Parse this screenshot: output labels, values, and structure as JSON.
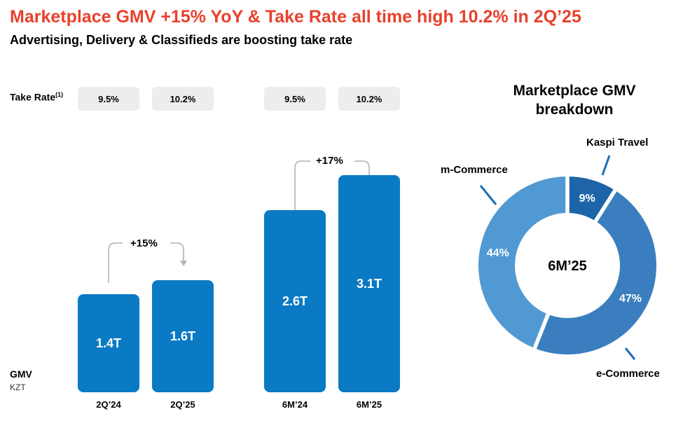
{
  "title": "Marketplace GMV +15% YoY & Take Rate all time high 10.2% in 2Q’25",
  "subtitle": "Advertising, Delivery & Classifieds are boosting take rate",
  "take_rate": {
    "label": "Take Rate",
    "footnote": "(1)",
    "values": [
      "9.5%",
      "10.2%",
      "9.5%",
      "10.2%"
    ]
  },
  "gmv_label": "GMV",
  "currency_label": "KZT",
  "growth": {
    "quarter": "+15%",
    "half_year": "+17%"
  },
  "chart_data": [
    {
      "type": "bar",
      "categories": [
        "2Q’24",
        "2Q’25",
        "6M’24",
        "6M’25"
      ],
      "values": [
        1.4,
        1.6,
        2.6,
        3.1
      ],
      "data_labels": [
        "1.4T",
        "1.6T",
        "2.6T",
        "3.1T"
      ],
      "ylim": [
        0,
        3.4
      ],
      "grid": false
    },
    {
      "type": "pie",
      "title": "Marketplace GMV breakdown",
      "center_label": "6M’25",
      "slices": [
        {
          "name": "Kaspi Travel",
          "value": 9,
          "label": "9%",
          "color": "#1e64a8"
        },
        {
          "name": "e-Commerce",
          "value": 47,
          "label": "47%",
          "color": "#3a7ebf"
        },
        {
          "name": "m-Commerce",
          "value": 44,
          "label": "44%",
          "color": "#5199d2"
        }
      ]
    }
  ],
  "colors": {
    "title": "#e8412c",
    "bar": "#0a7ac4",
    "pill": "#ededed",
    "arrow": "#b3b3b3",
    "callout": "#1a6fb5"
  }
}
